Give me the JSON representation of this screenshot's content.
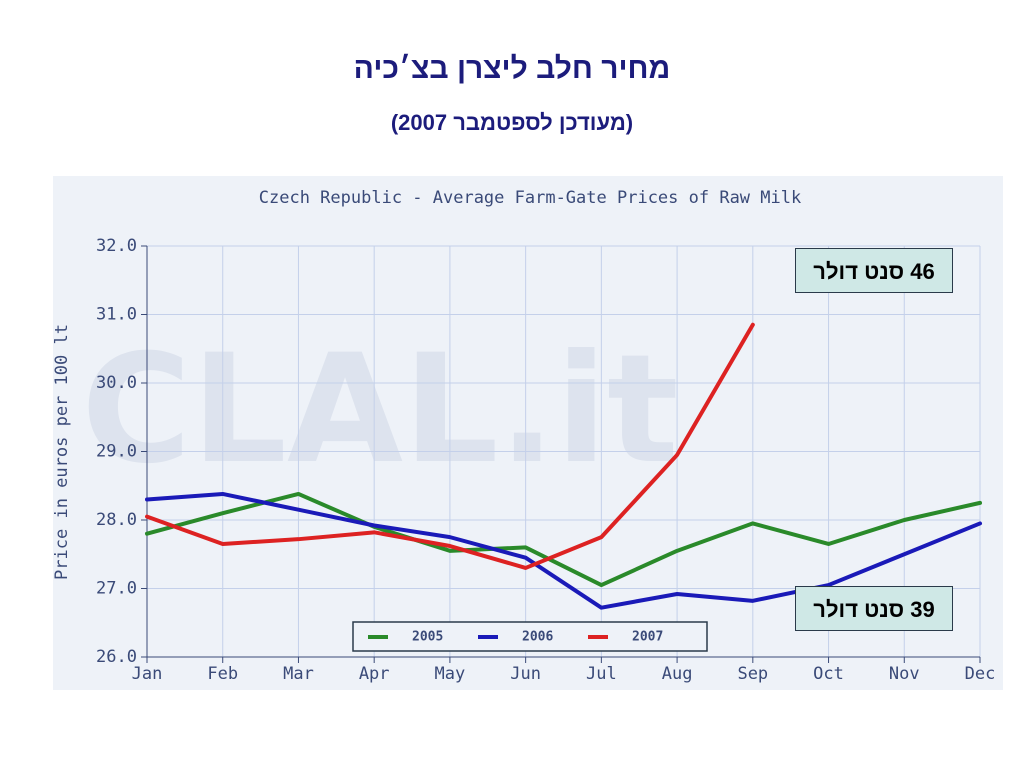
{
  "slide": {
    "title": "מחיר חלב ליצרן בצ׳כיה",
    "subtitle": "(מעודכן לספטמבר 2007)"
  },
  "chart_data": {
    "type": "line",
    "title": "Czech Republic - Average Farm-Gate Prices of Raw Milk",
    "ylabel": "Price in euros per 100 lt",
    "watermark": "CLAL.it",
    "categories": [
      "Jan",
      "Feb",
      "Mar",
      "Apr",
      "May",
      "Jun",
      "Jul",
      "Aug",
      "Sep",
      "Oct",
      "Nov",
      "Dec"
    ],
    "series": [
      {
        "name": "2005",
        "color": "#2a8a2a",
        "values": [
          27.8,
          28.1,
          28.38,
          27.9,
          27.55,
          27.6,
          27.05,
          27.55,
          27.95,
          27.65,
          28.0,
          28.25
        ]
      },
      {
        "name": "2006",
        "color": "#1a1ab8",
        "values": [
          28.3,
          28.38,
          28.15,
          27.92,
          27.75,
          27.45,
          26.72,
          26.92,
          26.82,
          27.05,
          27.5,
          27.95
        ]
      },
      {
        "name": "2007",
        "color": "#dd2222",
        "values": [
          28.05,
          27.65,
          27.72,
          27.82,
          27.62,
          27.3,
          27.75,
          28.95,
          30.85,
          null,
          null,
          null
        ]
      }
    ],
    "ylim": [
      26,
      32
    ],
    "yticks": [
      {
        "value": 26,
        "label": "26.0"
      },
      {
        "value": 27,
        "label": "27.0"
      },
      {
        "value": 28,
        "label": "28.0"
      },
      {
        "value": 29,
        "label": "29.0"
      },
      {
        "value": 30,
        "label": "30.0"
      },
      {
        "value": 31,
        "label": "31.0"
      },
      {
        "value": 32,
        "label": "32.0"
      }
    ],
    "grid": true,
    "legend": "bottom",
    "annotations": [
      "46 סנט דולר",
      "39 סנט דולר"
    ]
  }
}
